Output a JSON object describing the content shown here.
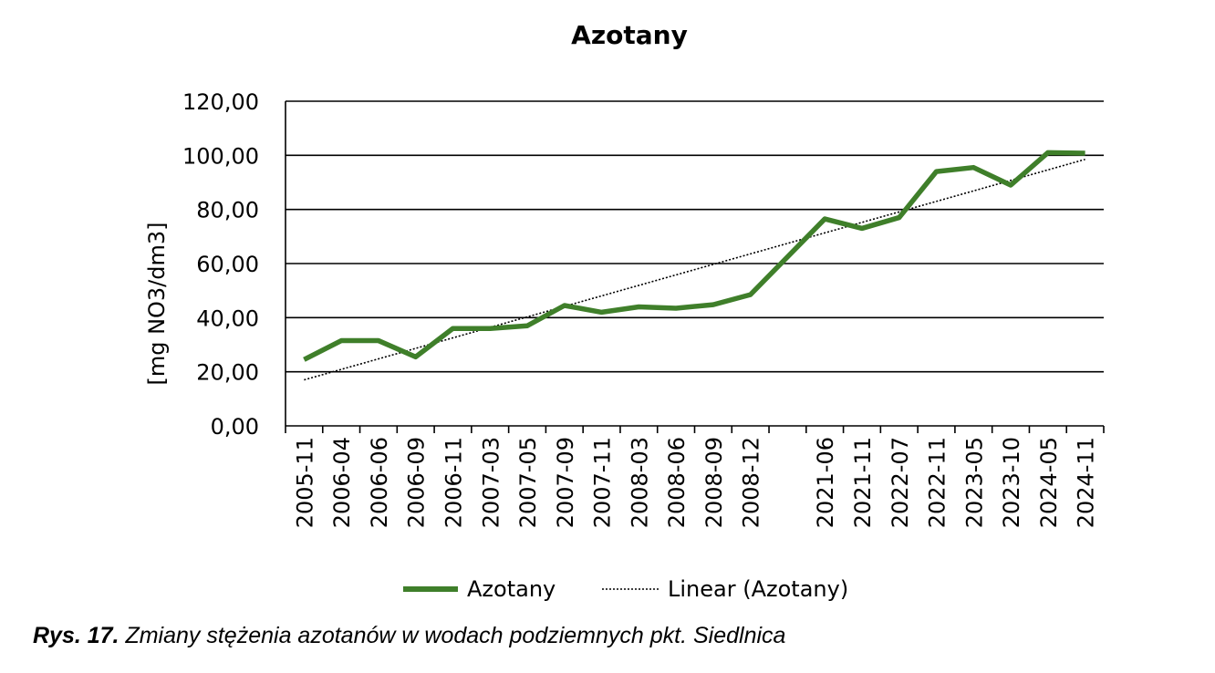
{
  "chart_data": {
    "type": "line",
    "title": "Azotany",
    "xlabel": "",
    "ylabel": "[mg NO3/dm3]",
    "categories": [
      "2005-11",
      "2006-04",
      "2006-06",
      "2006-09",
      "2006-11",
      "2007-03",
      "2007-05",
      "2007-09",
      "2007-11",
      "2008-03",
      "2008-06",
      "2008-09",
      "2008-12",
      "",
      "2021-06",
      "2021-11",
      "2022-07",
      "2022-11",
      "2023-05",
      "2023-10",
      "2024-05",
      "2024-11"
    ],
    "series": [
      {
        "name": "Azotany",
        "color": "#3f7f2a",
        "values": [
          24.5,
          31.5,
          31.5,
          25.5,
          36,
          36,
          37,
          44.5,
          42,
          44,
          43.5,
          44.8,
          48.5,
          null,
          76.5,
          73,
          77,
          94,
          95.5,
          89,
          101,
          100.8
        ]
      }
    ],
    "trendline": {
      "name": "Linear (Azotany)",
      "type": "linear",
      "start": 17,
      "end": 98.5,
      "color": "#000000"
    },
    "ylim": [
      0,
      120
    ],
    "yticks": [
      0,
      20,
      40,
      60,
      80,
      100,
      120
    ],
    "ytick_labels": [
      "0,00",
      "20,00",
      "40,00",
      "60,00",
      "80,00",
      "100,00",
      "120,00"
    ],
    "grid": true,
    "legend": "bottom"
  },
  "caption": {
    "lead": "Rys. 17.",
    "text": " Zmiany stężenia azotanów w wodach podziemnych pkt. Siedlnica"
  }
}
